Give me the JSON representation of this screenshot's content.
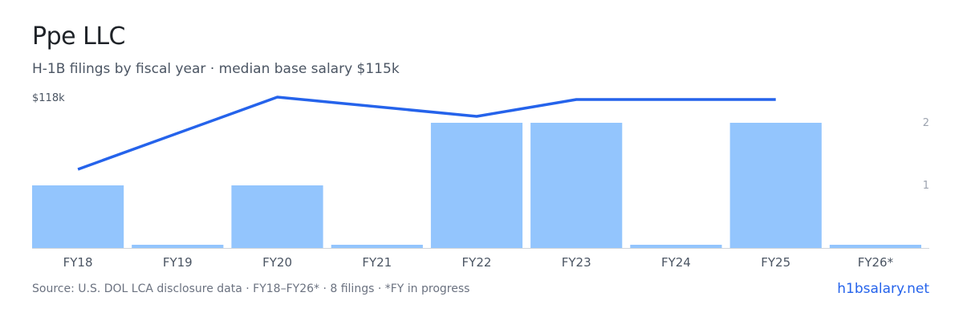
{
  "header": {
    "title": "Ppe LLC",
    "subtitle": "H-1B filings by fiscal year · median base salary $115k"
  },
  "footer": {
    "source": "Source: U.S. DOL LCA disclosure data · FY18–FY26* · 8 filings · *FY in progress",
    "brand": "h1bsalary.net"
  },
  "colors": {
    "bar": "#93c5fd",
    "line": "#2563eb",
    "axis": "#d1d5db",
    "tick_text": "#4b5563",
    "right_tick_text": "#9ca3af"
  },
  "chart_data": {
    "type": "bar",
    "categories": [
      "FY18",
      "FY19",
      "FY20",
      "FY21",
      "FY22",
      "FY23",
      "FY24",
      "FY25",
      "FY26*"
    ],
    "series": [
      {
        "type": "bar",
        "axis": "right",
        "values": [
          1,
          0,
          1,
          0,
          2,
          2,
          0,
          2,
          0
        ]
      },
      {
        "type": "line",
        "axis": "left",
        "values": [
          103,
          null,
          118,
          null,
          114,
          117.5,
          null,
          117.5,
          null
        ]
      }
    ],
    "left_axis": {
      "top_label": "$118k"
    },
    "right_axis": {
      "ticks": [
        "1",
        "2"
      ],
      "ylim": [
        0,
        2.5
      ]
    },
    "grid": false
  }
}
